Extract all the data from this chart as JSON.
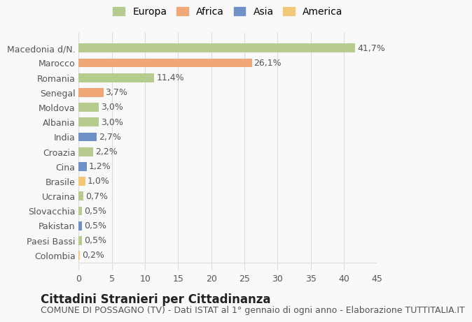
{
  "countries": [
    "Colombia",
    "Paesi Bassi",
    "Pakistan",
    "Slovacchia",
    "Ucraina",
    "Brasile",
    "Cina",
    "Croazia",
    "India",
    "Albania",
    "Moldova",
    "Senegal",
    "Romania",
    "Marocco",
    "Macedonia d/N."
  ],
  "values": [
    0.2,
    0.5,
    0.5,
    0.5,
    0.7,
    1.0,
    1.2,
    2.2,
    2.7,
    3.0,
    3.0,
    3.7,
    11.4,
    26.1,
    41.7
  ],
  "labels": [
    "0,2%",
    "0,5%",
    "0,5%",
    "0,5%",
    "0,7%",
    "1,0%",
    "1,2%",
    "2,2%",
    "2,7%",
    "3,0%",
    "3,0%",
    "3,7%",
    "11,4%",
    "26,1%",
    "41,7%"
  ],
  "colors": [
    "#f0c878",
    "#b5cc8e",
    "#7090c8",
    "#b5cc8e",
    "#b5cc8e",
    "#f0c878",
    "#7090c8",
    "#b5cc8e",
    "#7090c8",
    "#b5cc8e",
    "#b5cc8e",
    "#f0a878",
    "#b5cc8e",
    "#f0a878",
    "#b5cc8e"
  ],
  "legend_labels": [
    "Europa",
    "Africa",
    "Asia",
    "America"
  ],
  "legend_colors": [
    "#b5cc8e",
    "#f0a878",
    "#7090c8",
    "#f0c878"
  ],
  "title": "Cittadini Stranieri per Cittadinanza",
  "subtitle": "COMUNE DI POSSAGNO (TV) - Dati ISTAT al 1° gennaio di ogni anno - Elaborazione TUTTITALIA.IT",
  "xlim": [
    0,
    45
  ],
  "xticks": [
    0,
    5,
    10,
    15,
    20,
    25,
    30,
    35,
    40,
    45
  ],
  "background_color": "#f9f9f9",
  "grid_color": "#dddddd",
  "bar_height": 0.6,
  "title_fontsize": 12,
  "subtitle_fontsize": 9,
  "tick_fontsize": 9,
  "label_fontsize": 9
}
